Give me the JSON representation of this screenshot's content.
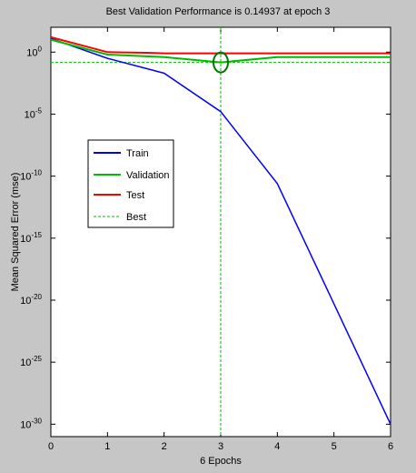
{
  "chart_data": {
    "type": "line",
    "title": "Best Validation Performance is 0.14937 at epoch 3",
    "xlabel": "6 Epochs",
    "ylabel": "Mean Squared Error  (mse)",
    "xlim": [
      0,
      6
    ],
    "ylim_log10": [
      -31,
      2
    ],
    "yscale": "log",
    "x_ticks": [
      "0",
      "1",
      "2",
      "3",
      "4",
      "5",
      "6"
    ],
    "y_ticks": [
      {
        "base": "10",
        "exp": "0",
        "value": 0
      },
      {
        "base": "10",
        "exp": "-5",
        "value": -5
      },
      {
        "base": "10",
        "exp": "-10",
        "value": -10
      },
      {
        "base": "10",
        "exp": "-15",
        "value": -15
      },
      {
        "base": "10",
        "exp": "-20",
        "value": -20
      },
      {
        "base": "10",
        "exp": "-25",
        "value": -25
      },
      {
        "base": "10",
        "exp": "-30",
        "value": -30
      }
    ],
    "grid": false,
    "legend_position": "upper-left",
    "series": [
      {
        "name": "Train",
        "color": "#0000ff",
        "x": [
          0,
          1,
          2,
          3,
          4,
          5,
          6
        ],
        "log10_y": [
          1.1,
          -0.5,
          -1.7,
          -4.8,
          -10.6,
          -20.3,
          -30
        ]
      },
      {
        "name": "Validation",
        "color": "#00bb00",
        "x": [
          0,
          1,
          2,
          3,
          4,
          5,
          6
        ],
        "log10_y": [
          1.0,
          -0.2,
          -0.4,
          -0.83,
          -0.4,
          -0.4,
          -0.4
        ]
      },
      {
        "name": "Test",
        "color": "#ff0000",
        "x": [
          0,
          1,
          1.7,
          2,
          3,
          4,
          5,
          6
        ],
        "log10_y": [
          1.2,
          0.0,
          -0.05,
          -0.1,
          -0.1,
          -0.1,
          -0.1,
          -0.1
        ]
      }
    ],
    "best": {
      "name": "Best",
      "color": "#00bb00",
      "x": 3,
      "log10_y": -0.83
    }
  }
}
